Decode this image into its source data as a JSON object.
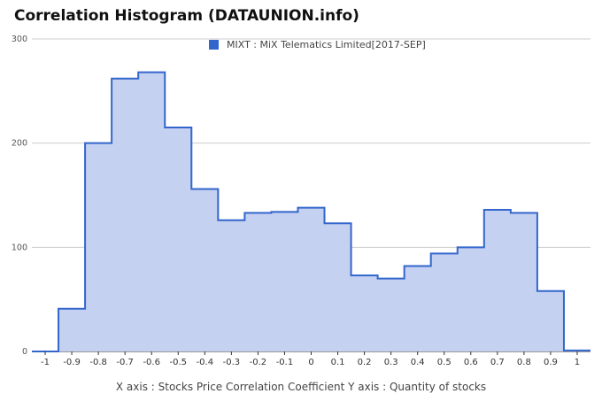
{
  "title": "Correlation Histogram (DATAUNION.info)",
  "legend": {
    "label": "MIXT : MiX Telematics Limited[2017-SEP]"
  },
  "caption": "X axis : Stocks Price Correlation Coefficient   Y axis : Quantity of stocks",
  "colors": {
    "line": "#3366cc",
    "fill": "#c5d1f0",
    "grid": "#cccccc"
  },
  "chart_data": {
    "type": "area",
    "step": true,
    "title": "Correlation Histogram (DATAUNION.info)",
    "xlabel": "Stocks Price Correlation Coefficient",
    "ylabel": "Quantity of stocks",
    "x": [
      -1,
      -0.9,
      -0.8,
      -0.7,
      -0.6,
      -0.5,
      -0.4,
      -0.3,
      -0.2,
      -0.1,
      0,
      0.1,
      0.2,
      0.3,
      0.4,
      0.5,
      0.6,
      0.7,
      0.8,
      0.9,
      1
    ],
    "series": [
      {
        "name": "MIXT : MiX Telematics Limited[2017-SEP]",
        "values": [
          0,
          41,
          200,
          262,
          268,
          215,
          156,
          126,
          133,
          134,
          138,
          123,
          73,
          70,
          82,
          94,
          100,
          136,
          133,
          58,
          1
        ]
      }
    ],
    "xticks": [
      "-1",
      "-0.9",
      "-0.8",
      "-0.7",
      "-0.6",
      "-0.5",
      "-0.4",
      "-0.3",
      "-0.2",
      "-0.1",
      "0",
      "0.1",
      "0.2",
      "0.3",
      "0.4",
      "0.5",
      "0.6",
      "0.7",
      "0.8",
      "0.9",
      "1"
    ],
    "yticks": [
      "0",
      "100",
      "200",
      "300"
    ],
    "ylim": [
      0,
      300
    ],
    "xlim": [
      -1.05,
      1.05
    ],
    "grid": true,
    "legend_position": "top"
  }
}
